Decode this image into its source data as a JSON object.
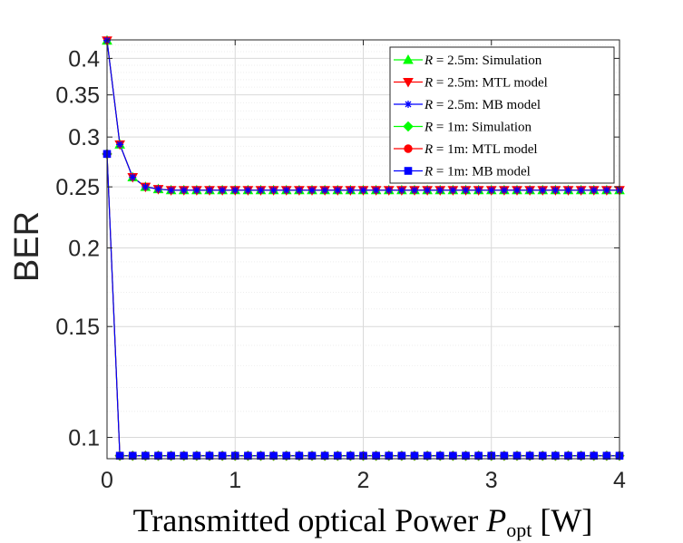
{
  "chart_data": {
    "type": "line",
    "ylabel": "BER",
    "xlabel": {
      "main": "Transmitted optical Power ",
      "sym": "P",
      "sub": "opt",
      "unit": " [W]"
    },
    "xlim": [
      0,
      4
    ],
    "ylim": [
      0.0925,
      0.428
    ],
    "y_scale": "log",
    "grid": true,
    "minor_grid": true,
    "legend_position": "top-right",
    "x_ticks": [
      "0",
      "1",
      "2",
      "3",
      "4"
    ],
    "y_ticks": [
      {
        "value": 0.1,
        "label": "0.1"
      },
      {
        "value": 0.15,
        "label": "0.15"
      },
      {
        "value": 0.2,
        "label": "0.2"
      },
      {
        "value": 0.25,
        "label": "0.25"
      },
      {
        "value": 0.3,
        "label": "0.3"
      },
      {
        "value": 0.35,
        "label": "0.35"
      },
      {
        "value": 0.4,
        "label": "0.4"
      }
    ],
    "x": [
      0,
      0.1,
      0.2,
      0.3,
      0.4,
      0.5,
      0.6,
      0.7,
      0.8,
      0.9,
      1.0,
      1.1,
      1.2,
      1.3,
      1.4,
      1.5,
      1.6,
      1.7,
      1.8,
      1.9,
      2.0,
      2.1,
      2.2,
      2.3,
      2.4,
      2.5,
      2.6,
      2.7,
      2.8,
      2.9,
      3.0,
      3.1,
      3.2,
      3.3,
      3.4,
      3.5,
      3.6,
      3.7,
      3.8,
      3.9,
      4.0
    ],
    "series": [
      {
        "name": {
          "sym": "R",
          "rest": " = 2.5m: Simulation"
        },
        "color": "#00ff00",
        "marker": "triangle-up",
        "values": [
          0.427,
          0.292,
          0.259,
          0.25,
          0.248,
          0.247,
          0.247,
          0.247,
          0.247,
          0.247,
          0.247,
          0.247,
          0.247,
          0.247,
          0.247,
          0.247,
          0.247,
          0.247,
          0.247,
          0.247,
          0.247,
          0.247,
          0.247,
          0.247,
          0.247,
          0.247,
          0.247,
          0.247,
          0.247,
          0.247,
          0.247,
          0.247,
          0.247,
          0.247,
          0.247,
          0.247,
          0.247,
          0.247,
          0.247,
          0.247,
          0.247
        ]
      },
      {
        "name": {
          "sym": "R",
          "rest": " = 2.5m: MTL model"
        },
        "color": "#ff0000",
        "marker": "triangle-down",
        "values": [
          0.427,
          0.292,
          0.259,
          0.25,
          0.248,
          0.247,
          0.247,
          0.247,
          0.247,
          0.247,
          0.247,
          0.247,
          0.247,
          0.247,
          0.247,
          0.247,
          0.247,
          0.247,
          0.247,
          0.247,
          0.247,
          0.247,
          0.247,
          0.247,
          0.247,
          0.247,
          0.247,
          0.247,
          0.247,
          0.247,
          0.247,
          0.247,
          0.247,
          0.247,
          0.247,
          0.247,
          0.247,
          0.247,
          0.247,
          0.247,
          0.247
        ]
      },
      {
        "name": {
          "sym": "R",
          "rest": " = 2.5m: MB model"
        },
        "color": "#0000ff",
        "marker": "asterisk",
        "values": [
          0.427,
          0.292,
          0.259,
          0.25,
          0.248,
          0.247,
          0.247,
          0.247,
          0.247,
          0.247,
          0.247,
          0.247,
          0.247,
          0.247,
          0.247,
          0.247,
          0.247,
          0.247,
          0.247,
          0.247,
          0.247,
          0.247,
          0.247,
          0.247,
          0.247,
          0.247,
          0.247,
          0.247,
          0.247,
          0.247,
          0.247,
          0.247,
          0.247,
          0.247,
          0.247,
          0.247,
          0.247,
          0.247,
          0.247,
          0.247,
          0.247
        ]
      },
      {
        "name": {
          "sym": "R",
          "rest": " = 1m: Simulation"
        },
        "color": "#00ff00",
        "marker": "diamond",
        "values": [
          0.282,
          0.0935,
          0.0935,
          0.0935,
          0.0935,
          0.0935,
          0.0935,
          0.0935,
          0.0935,
          0.0935,
          0.0935,
          0.0935,
          0.0935,
          0.0935,
          0.0935,
          0.0935,
          0.0935,
          0.0935,
          0.0935,
          0.0935,
          0.0935,
          0.0935,
          0.0935,
          0.0935,
          0.0935,
          0.0935,
          0.0935,
          0.0935,
          0.0935,
          0.0935,
          0.0935,
          0.0935,
          0.0935,
          0.0935,
          0.0935,
          0.0935,
          0.0935,
          0.0935,
          0.0935,
          0.0935,
          0.0935
        ]
      },
      {
        "name": {
          "sym": "R",
          "rest": " = 1m: MTL model"
        },
        "color": "#ff0000",
        "marker": "circle",
        "values": [
          0.282,
          0.0935,
          0.0935,
          0.0935,
          0.0935,
          0.0935,
          0.0935,
          0.0935,
          0.0935,
          0.0935,
          0.0935,
          0.0935,
          0.0935,
          0.0935,
          0.0935,
          0.0935,
          0.0935,
          0.0935,
          0.0935,
          0.0935,
          0.0935,
          0.0935,
          0.0935,
          0.0935,
          0.0935,
          0.0935,
          0.0935,
          0.0935,
          0.0935,
          0.0935,
          0.0935,
          0.0935,
          0.0935,
          0.0935,
          0.0935,
          0.0935,
          0.0935,
          0.0935,
          0.0935,
          0.0935,
          0.0935
        ]
      },
      {
        "name": {
          "sym": "R",
          "rest": " = 1m: MB model"
        },
        "color": "#0000ff",
        "marker": "square",
        "values": [
          0.282,
          0.0935,
          0.0935,
          0.0935,
          0.0935,
          0.0935,
          0.0935,
          0.0935,
          0.0935,
          0.0935,
          0.0935,
          0.0935,
          0.0935,
          0.0935,
          0.0935,
          0.0935,
          0.0935,
          0.0935,
          0.0935,
          0.0935,
          0.0935,
          0.0935,
          0.0935,
          0.0935,
          0.0935,
          0.0935,
          0.0935,
          0.0935,
          0.0935,
          0.0935,
          0.0935,
          0.0935,
          0.0935,
          0.0935,
          0.0935,
          0.0935,
          0.0935,
          0.0935,
          0.0935,
          0.0935,
          0.0935
        ]
      }
    ]
  }
}
